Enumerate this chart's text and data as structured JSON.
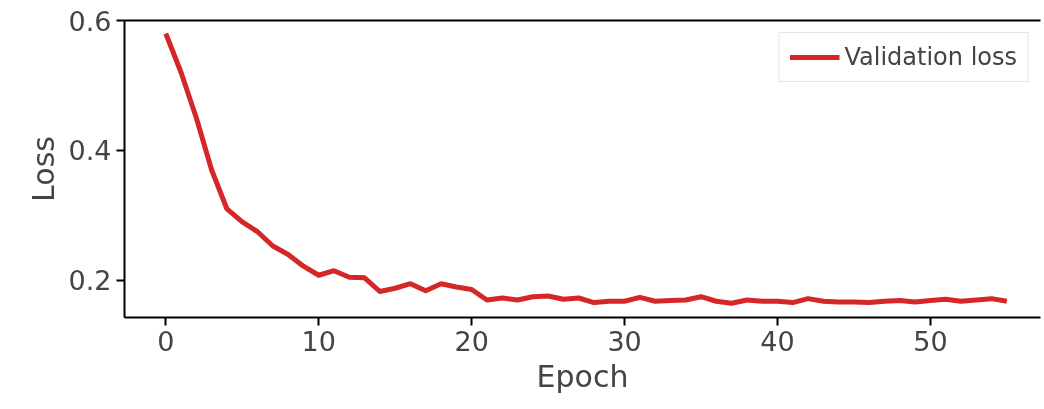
{
  "chart_data": {
    "type": "line",
    "xlabel": "Epoch",
    "ylabel": "Loss",
    "x": [
      0,
      1,
      2,
      3,
      4,
      5,
      6,
      7,
      8,
      9,
      10,
      11,
      12,
      13,
      14,
      15,
      16,
      17,
      18,
      19,
      20,
      21,
      22,
      23,
      24,
      25,
      26,
      27,
      28,
      29,
      30,
      31,
      32,
      33,
      34,
      35,
      36,
      37,
      38,
      39,
      40,
      41,
      42,
      43,
      44,
      45,
      46,
      47,
      48,
      49,
      50,
      51,
      52,
      53,
      54,
      55
    ],
    "series": [
      {
        "name": "Validation loss",
        "color": "#d62728",
        "values": [
          0.58,
          0.52,
          0.45,
          0.37,
          0.31,
          0.29,
          0.275,
          0.253,
          0.24,
          0.222,
          0.208,
          0.215,
          0.205,
          0.204,
          0.183,
          0.188,
          0.195,
          0.184,
          0.195,
          0.19,
          0.186,
          0.17,
          0.173,
          0.17,
          0.175,
          0.176,
          0.171,
          0.173,
          0.166,
          0.168,
          0.168,
          0.174,
          0.168,
          0.169,
          0.17,
          0.175,
          0.168,
          0.165,
          0.17,
          0.168,
          0.168,
          0.166,
          0.172,
          0.168,
          0.167,
          0.167,
          0.166,
          0.168,
          0.169,
          0.167,
          0.169,
          0.171,
          0.168,
          0.17,
          0.172,
          0.168
        ]
      }
    ],
    "xlim": [
      -2.7,
      57.2
    ],
    "ylim": [
      0.143,
      0.6
    ],
    "xticks": [
      0,
      10,
      20,
      30,
      40,
      50
    ],
    "yticks": [
      {
        "value": 0.2,
        "label": "0.2"
      },
      {
        "value": 0.4,
        "label": "0.4"
      },
      {
        "value": 0.6,
        "label": "0.6"
      }
    ],
    "grid": false,
    "legend": "top right",
    "line_style": "solid",
    "marker": "none"
  }
}
